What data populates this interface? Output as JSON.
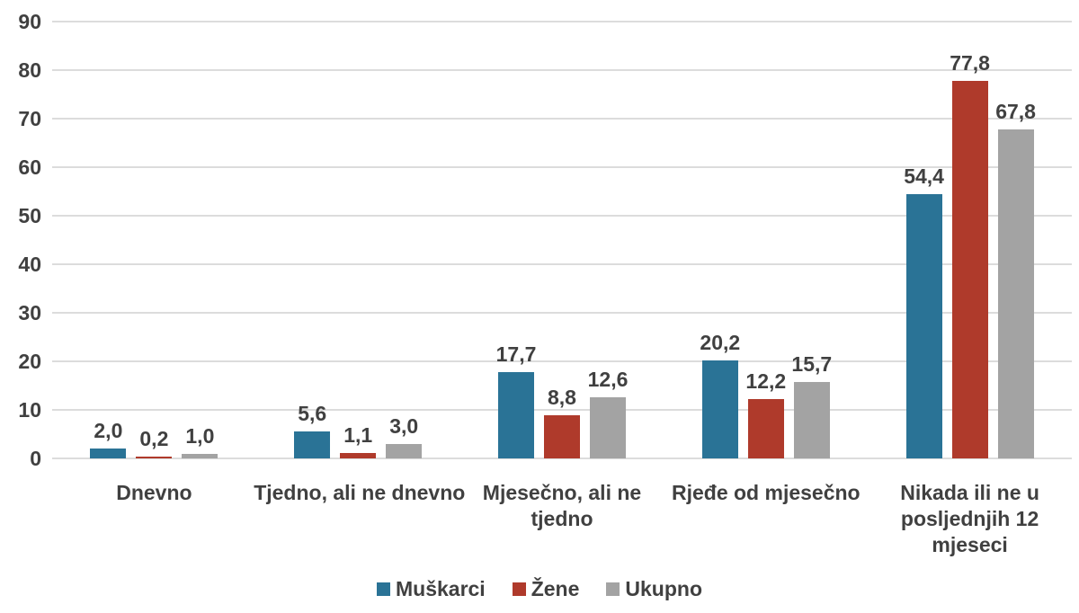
{
  "chart_data": {
    "type": "bar",
    "title": "",
    "categories": [
      "Dnevno",
      "Tjedno, ali ne dnevno",
      "Mjesečno, ali ne tjedno",
      "Rjeđe od mjesečno",
      "Nikada ili ne u posljednjih 12 mjeseci"
    ],
    "category_lines": [
      [
        "Dnevno"
      ],
      [
        "Tjedno, ali ne dnevno"
      ],
      [
        "Mjesečno, ali ne",
        "tjedno"
      ],
      [
        "Rjeđe od mjesečno"
      ],
      [
        "Nikada ili ne u",
        "posljednjih 12",
        "mjeseci"
      ]
    ],
    "series": [
      {
        "name": "Muškarci",
        "color": "#2a7396",
        "values": [
          2.0,
          5.6,
          17.7,
          20.2,
          54.4
        ],
        "labels": [
          "2,0",
          "5,6",
          "17,7",
          "20,2",
          "54,4"
        ]
      },
      {
        "name": "Žene",
        "color": "#af3a2b",
        "values": [
          0.2,
          1.1,
          8.8,
          12.2,
          77.8
        ],
        "labels": [
          "0,2",
          "1,1",
          "8,8",
          "12,2",
          "77,8"
        ]
      },
      {
        "name": "Ukupno",
        "color": "#a3a3a3",
        "values": [
          1.0,
          3.0,
          12.6,
          15.7,
          67.8
        ],
        "labels": [
          "1,0",
          "3,0",
          "12,6",
          "15,7",
          "67,8"
        ]
      }
    ],
    "y_axis": {
      "min": 0,
      "max": 90,
      "step": 10,
      "tick_labels": [
        "0",
        "10",
        "20",
        "30",
        "40",
        "50",
        "60",
        "70",
        "80",
        "90"
      ]
    },
    "ylim": [
      0,
      90
    ],
    "grid": true,
    "legend_position": "bottom",
    "colors": {
      "text": "#404040",
      "gridline": "#dcdcdc",
      "background": "#ffffff"
    }
  }
}
